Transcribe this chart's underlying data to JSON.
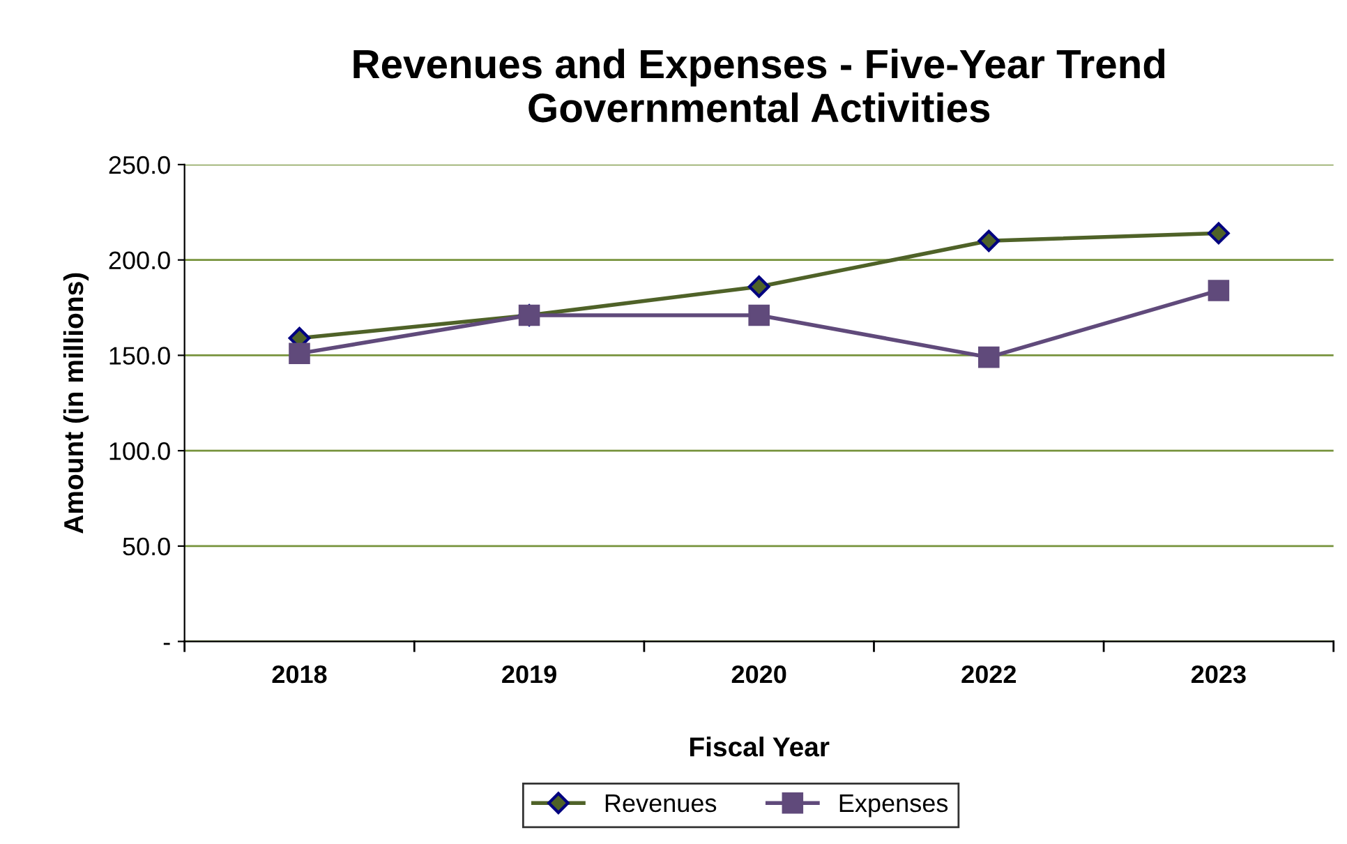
{
  "chart_data": {
    "type": "line",
    "title": "Revenues and Expenses - Five-Year Trend\nGovernmental Activities",
    "xlabel": "Fiscal Year",
    "ylabel": "Amount (in millions)",
    "categories": [
      "2018",
      "2019",
      "2020",
      "2022",
      "2023"
    ],
    "series": [
      {
        "name": "Revenues",
        "color": "#4f6228",
        "marker": "diamond",
        "values": [
          159,
          171,
          186,
          210,
          214
        ]
      },
      {
        "name": "Expenses",
        "color": "#604a7b",
        "marker": "square",
        "values": [
          151,
          171,
          171,
          149,
          184
        ]
      }
    ],
    "ylim": [
      0,
      250
    ],
    "yticks": [
      {
        "value": 0,
        "label": "-"
      },
      {
        "value": 50,
        "label": "50.0"
      },
      {
        "value": 100,
        "label": "100.0"
      },
      {
        "value": 150,
        "label": "150.0"
      },
      {
        "value": 200,
        "label": "200.0"
      },
      {
        "value": 250,
        "label": "250.0"
      }
    ],
    "grid": "y",
    "legend": "bottom",
    "line_style": "solid"
  }
}
